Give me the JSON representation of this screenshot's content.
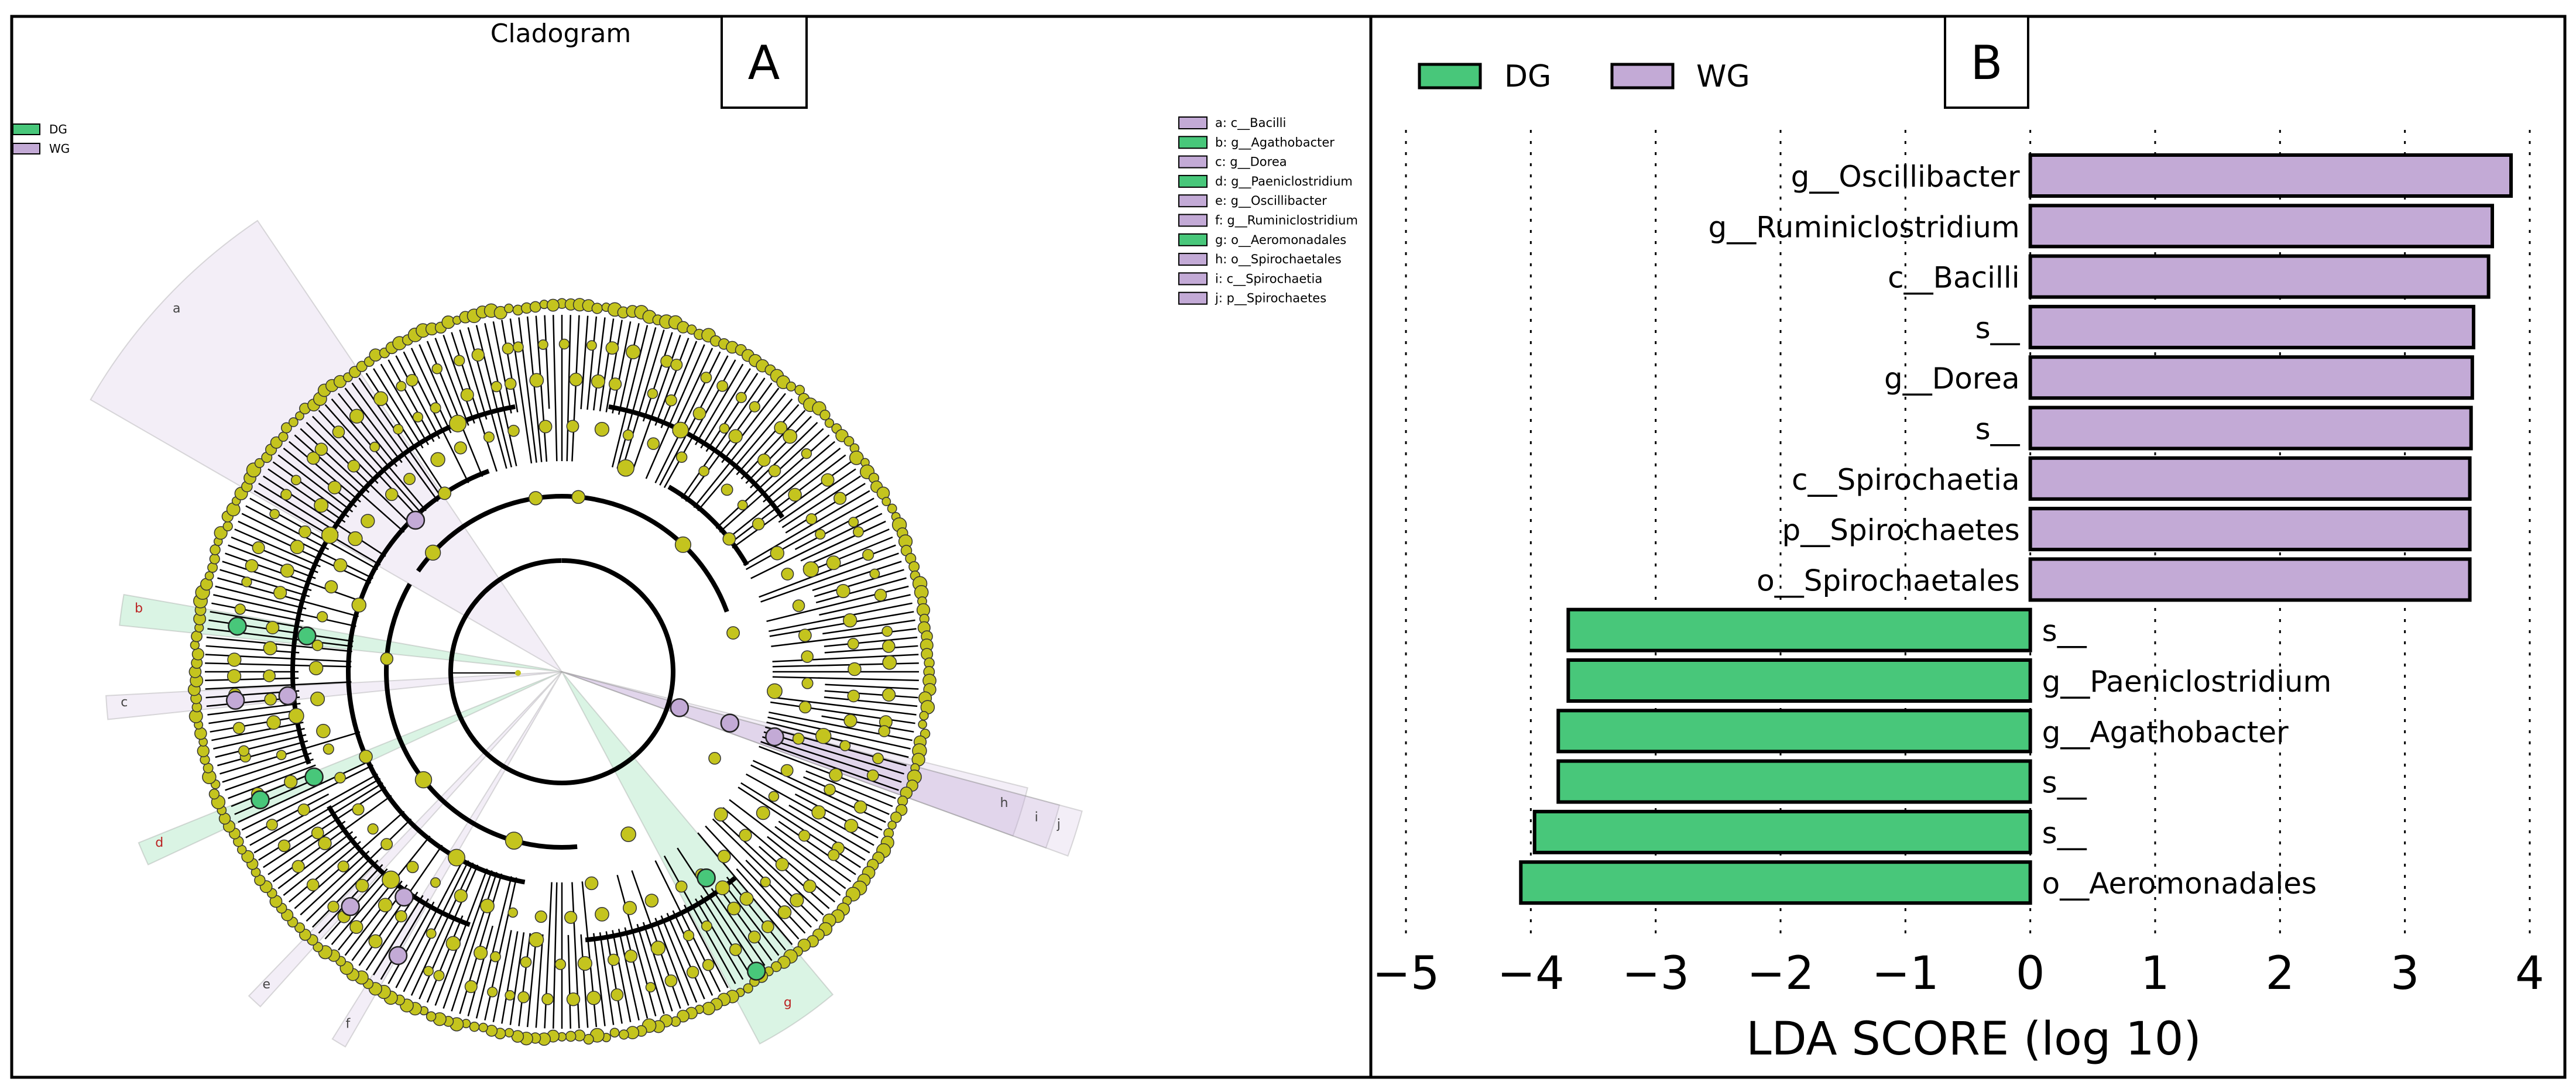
{
  "colors": {
    "dg": "#48c77a",
    "wg": "#c3aad6",
    "node": "#c4c41e",
    "frame": "#000000"
  },
  "panel_a": {
    "label": "A",
    "title": "Cladogram",
    "legend": [
      {
        "name": "DG",
        "color": "#48c77a"
      },
      {
        "name": "WG",
        "color": "#c3aad6"
      }
    ],
    "key": [
      {
        "text": "a: c__Bacilli",
        "group": "WG"
      },
      {
        "text": "b: g__Agathobacter",
        "group": "DG"
      },
      {
        "text": "c: g__Dorea",
        "group": "WG"
      },
      {
        "text": "d: g__Paeniclostridium",
        "group": "DG"
      },
      {
        "text": "e: g__Oscillibacter",
        "group": "WG"
      },
      {
        "text": "f: g__Ruminiclostridium",
        "group": "WG"
      },
      {
        "text": "g: o__Aeromonadales",
        "group": "DG"
      },
      {
        "text": "h: o__Spirochaetales",
        "group": "WG"
      },
      {
        "text": "i: c__Spirochaetia",
        "group": "WG"
      },
      {
        "text": "j: p__Spirochaetes",
        "group": "WG"
      }
    ],
    "clade_labels": [
      {
        "letter": "a",
        "group": "WG"
      },
      {
        "letter": "b",
        "group": "DG"
      },
      {
        "letter": "c",
        "group": "WG"
      },
      {
        "letter": "d",
        "group": "DG"
      },
      {
        "letter": "e",
        "group": "WG"
      },
      {
        "letter": "f",
        "group": "WG"
      },
      {
        "letter": "g",
        "group": "DG"
      },
      {
        "letter": "h",
        "group": "WG"
      },
      {
        "letter": "i",
        "group": "WG"
      },
      {
        "letter": "j",
        "group": "WG"
      }
    ]
  },
  "chart_data": {
    "type": "bar",
    "orientation": "horizontal",
    "panel_label": "B",
    "title": "",
    "xlabel": "LDA SCORE (log 10)",
    "ylabel": "",
    "xlim": [
      -5,
      4
    ],
    "xticks": [
      -5,
      -4,
      -3,
      -2,
      -1,
      0,
      1,
      2,
      3,
      4
    ],
    "xtick_labels": [
      "−5",
      "−4",
      "−3",
      "−2",
      "−1",
      "0",
      "1",
      "2",
      "3",
      "4"
    ],
    "grid": "vertical dotted",
    "legend": [
      {
        "name": "DG",
        "color": "#48c77a"
      },
      {
        "name": "WG",
        "color": "#c3aad6"
      }
    ],
    "legend_position": "top-left",
    "bars": [
      {
        "label": "g__Oscillibacter",
        "value": 3.85,
        "group": "WG"
      },
      {
        "label": "g__Ruminiclostridium",
        "value": 3.7,
        "group": "WG"
      },
      {
        "label": "c__Bacilli",
        "value": 3.67,
        "group": "WG"
      },
      {
        "label": "s__",
        "value": 3.55,
        "group": "WG"
      },
      {
        "label": "g__Dorea",
        "value": 3.54,
        "group": "WG"
      },
      {
        "label": "s__",
        "value": 3.53,
        "group": "WG"
      },
      {
        "label": "c__Spirochaetia",
        "value": 3.52,
        "group": "WG"
      },
      {
        "label": "p__Spirochaetes",
        "value": 3.52,
        "group": "WG"
      },
      {
        "label": "o__Spirochaetales",
        "value": 3.52,
        "group": "WG"
      },
      {
        "label": "s__",
        "value": -3.7,
        "group": "DG"
      },
      {
        "label": "g__Paeniclostridium",
        "value": -3.7,
        "group": "DG"
      },
      {
        "label": "g__Agathobacter",
        "value": -3.78,
        "group": "DG"
      },
      {
        "label": "s__",
        "value": -3.78,
        "group": "DG"
      },
      {
        "label": "s__",
        "value": -3.97,
        "group": "DG"
      },
      {
        "label": "o__Aeromonadales",
        "value": -4.08,
        "group": "DG"
      }
    ]
  }
}
